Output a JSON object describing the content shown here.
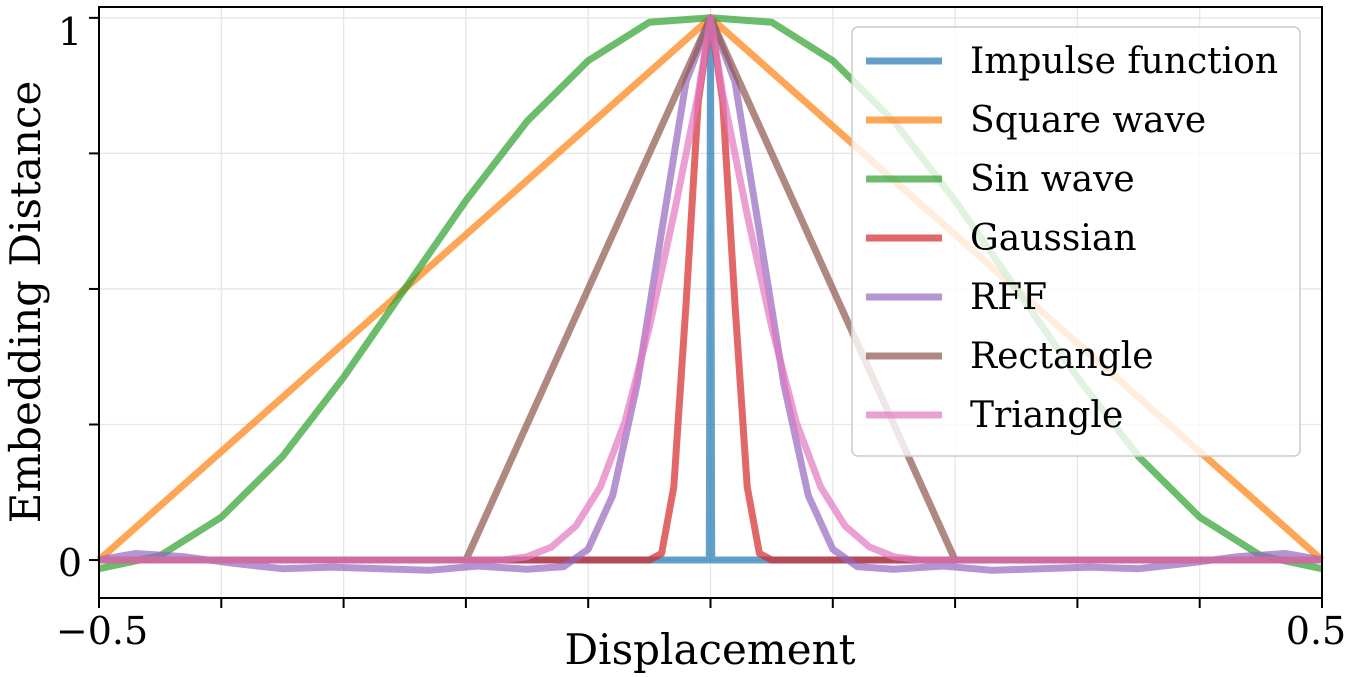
{
  "chart_data": {
    "type": "line",
    "title": "",
    "xlabel": "Displacement",
    "ylabel": "Embedding Distance",
    "xlim": [
      -0.5,
      0.5
    ],
    "ylim": [
      -0.07,
      1.02
    ],
    "x_tick_labels": [
      "−0.5",
      "0.5"
    ],
    "y_tick_labels": [
      "0",
      "1"
    ],
    "grid": true,
    "legend_position": "top-right",
    "series": [
      {
        "name": "Impulse function",
        "color": "#1f77b4",
        "points": [
          [
            -0.5,
            0
          ],
          [
            -0.001,
            0
          ],
          [
            0,
            1
          ],
          [
            0.001,
            0
          ],
          [
            0.5,
            0
          ]
        ]
      },
      {
        "name": "Square wave",
        "color": "#ff7f0e",
        "points": [
          [
            -0.5,
            0
          ],
          [
            0,
            1
          ],
          [
            0.5,
            0
          ]
        ]
      },
      {
        "name": "Sin wave",
        "color": "#2ca02c",
        "points": [
          [
            -0.5,
            -0.016
          ],
          [
            -0.45,
            0.008
          ],
          [
            -0.4,
            0.079
          ],
          [
            -0.35,
            0.191
          ],
          [
            -0.3,
            0.337
          ],
          [
            -0.25,
            0.5
          ],
          [
            -0.2,
            0.663
          ],
          [
            -0.15,
            0.809
          ],
          [
            -0.1,
            0.921
          ],
          [
            -0.05,
            0.992
          ],
          [
            0,
            1
          ],
          [
            0.05,
            0.992
          ],
          [
            0.1,
            0.921
          ],
          [
            0.15,
            0.809
          ],
          [
            0.2,
            0.663
          ],
          [
            0.25,
            0.5
          ],
          [
            0.3,
            0.337
          ],
          [
            0.35,
            0.191
          ],
          [
            0.4,
            0.079
          ],
          [
            0.45,
            0.008
          ],
          [
            0.5,
            -0.016
          ]
        ]
      },
      {
        "name": "Gaussian",
        "color": "#d62728",
        "points": [
          [
            -0.5,
            0
          ],
          [
            -0.05,
            0
          ],
          [
            -0.04,
            0.012
          ],
          [
            -0.03,
            0.135
          ],
          [
            -0.02,
            0.471
          ],
          [
            -0.01,
            0.846
          ],
          [
            0,
            1
          ],
          [
            0.01,
            0.846
          ],
          [
            0.02,
            0.471
          ],
          [
            0.03,
            0.135
          ],
          [
            0.04,
            0.012
          ],
          [
            0.05,
            0
          ],
          [
            0.5,
            0
          ]
        ]
      },
      {
        "name": "RFF",
        "color": "#9467bd",
        "points": [
          [
            -0.5,
            0
          ],
          [
            -0.47,
            0.012
          ],
          [
            -0.43,
            0.006
          ],
          [
            -0.39,
            -0.006
          ],
          [
            -0.35,
            -0.016
          ],
          [
            -0.31,
            -0.013
          ],
          [
            -0.27,
            -0.016
          ],
          [
            -0.23,
            -0.019
          ],
          [
            -0.19,
            -0.011
          ],
          [
            -0.15,
            -0.017
          ],
          [
            -0.12,
            -0.012
          ],
          [
            -0.1,
            0.02
          ],
          [
            -0.08,
            0.119
          ],
          [
            -0.06,
            0.324
          ],
          [
            -0.04,
            0.606
          ],
          [
            -0.02,
            0.882
          ],
          [
            0,
            1
          ],
          [
            0.02,
            0.882
          ],
          [
            0.04,
            0.606
          ],
          [
            0.06,
            0.324
          ],
          [
            0.08,
            0.119
          ],
          [
            0.1,
            0.02
          ],
          [
            0.12,
            -0.012
          ],
          [
            0.15,
            -0.017
          ],
          [
            0.19,
            -0.011
          ],
          [
            0.23,
            -0.019
          ],
          [
            0.27,
            -0.016
          ],
          [
            0.31,
            -0.013
          ],
          [
            0.35,
            -0.016
          ],
          [
            0.39,
            -0.006
          ],
          [
            0.43,
            0.006
          ],
          [
            0.47,
            0.012
          ],
          [
            0.5,
            0
          ]
        ]
      },
      {
        "name": "Rectangle",
        "color": "#8c564b",
        "points": [
          [
            -0.5,
            0
          ],
          [
            -0.2,
            0
          ],
          [
            0,
            1
          ],
          [
            0.2,
            0
          ],
          [
            0.5,
            0
          ]
        ]
      },
      {
        "name": "Triangle",
        "color": "#e377c2",
        "points": [
          [
            -0.5,
            0
          ],
          [
            -0.17,
            0
          ],
          [
            -0.15,
            0.006
          ],
          [
            -0.13,
            0.024
          ],
          [
            -0.11,
            0.063
          ],
          [
            -0.09,
            0.135
          ],
          [
            -0.07,
            0.255
          ],
          [
            -0.05,
            0.43
          ],
          [
            -0.03,
            0.637
          ],
          [
            -0.01,
            0.861
          ],
          [
            0,
            1
          ],
          [
            0.01,
            0.861
          ],
          [
            0.03,
            0.637
          ],
          [
            0.05,
            0.43
          ],
          [
            0.07,
            0.255
          ],
          [
            0.09,
            0.135
          ],
          [
            0.11,
            0.063
          ],
          [
            0.13,
            0.024
          ],
          [
            0.15,
            0.006
          ],
          [
            0.17,
            0
          ],
          [
            0.5,
            0
          ]
        ]
      }
    ]
  }
}
